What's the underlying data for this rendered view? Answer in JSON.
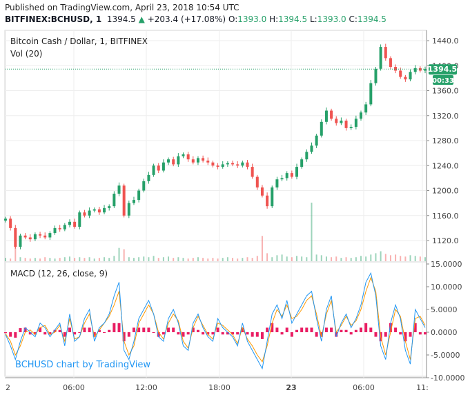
{
  "header": {
    "published": "Published on TradingView.com, April 23, 2018 10:54 UTC",
    "symbol": "BITFINEX:BCHUSD, 1",
    "last": "1394.5",
    "change": "+203.4 (+17.08%)",
    "o_label": "O:",
    "o": "1393.0",
    "h_label": "H:",
    "h": "1394.5",
    "l_label": "L:",
    "l": "1393.0",
    "c_label": "C:",
    "c": "1394.5"
  },
  "pane_labels": {
    "main_title": "Bitcoin Cash / Dollar, 1, BITFINEX",
    "volume": "Vol (20)",
    "macd": "MACD (12, 26, close, 9)",
    "watermark": "BCHUSD chart by TradingView"
  },
  "price_badge": "1394.5",
  "timer_badge": "00:33",
  "colors": {
    "up": "#26a069",
    "down": "#ef5350",
    "macd": "#2196f3",
    "signal": "#ff9800",
    "hist": "#e91e63",
    "badge": "#26a069"
  },
  "chart_data": [
    {
      "type": "candlestick",
      "title": "Bitcoin Cash / Dollar, 1, BITFINEX",
      "x_ticks": [
        "2",
        "06:00",
        "12:00",
        "18:00",
        "23",
        "06:00",
        "11:"
      ],
      "y_ticks": [
        "1120.0",
        "1160.0",
        "1200.0",
        "1240.0",
        "1280.0",
        "1320.0",
        "1360.0",
        "1400.0",
        "1440.0"
      ],
      "ylim": [
        1100,
        1455
      ],
      "last_price": 1394.5,
      "close_series": [
        1155,
        1140,
        1110,
        1128,
        1125,
        1122,
        1130,
        1128,
        1125,
        1132,
        1140,
        1138,
        1145,
        1150,
        1142,
        1165,
        1160,
        1168,
        1170,
        1165,
        1172,
        1175,
        1195,
        1208,
        1160,
        1180,
        1185,
        1200,
        1215,
        1225,
        1240,
        1232,
        1245,
        1250,
        1242,
        1255,
        1258,
        1250,
        1245,
        1252,
        1248,
        1245,
        1240,
        1238,
        1242,
        1244,
        1242,
        1240,
        1245,
        1238,
        1222,
        1205,
        1192,
        1175,
        1205,
        1218,
        1220,
        1228,
        1222,
        1238,
        1250,
        1262,
        1272,
        1288,
        1310,
        1328,
        1315,
        1308,
        1312,
        1300,
        1302,
        1315,
        1325,
        1338,
        1372,
        1395,
        1430,
        1412,
        1398,
        1392,
        1382,
        1378,
        1390,
        1396,
        1392,
        1394.5
      ]
    },
    {
      "type": "bar",
      "title": "Vol (20)",
      "values": [
        5,
        4,
        30,
        6,
        5,
        4,
        5,
        4,
        6,
        5,
        4,
        5,
        6,
        7,
        5,
        6,
        5,
        6,
        4,
        5,
        6,
        5,
        8,
        20,
        18,
        6,
        5,
        6,
        7,
        6,
        8,
        5,
        6,
        7,
        5,
        6,
        5,
        4,
        5,
        6,
        5,
        4,
        5,
        4,
        5,
        6,
        5,
        4,
        5,
        6,
        5,
        8,
        38,
        12,
        6,
        9,
        10,
        7,
        6,
        8,
        7,
        6,
        88,
        10,
        9,
        7,
        6,
        7,
        5,
        6,
        5,
        6,
        8,
        7,
        10,
        12,
        15,
        11,
        9,
        10,
        8,
        7,
        9,
        8,
        7,
        6
      ]
    },
    {
      "type": "line",
      "title": "MACD (12, 26, close, 9)",
      "y_ticks": [
        "-10.0000",
        "-5.0000",
        "0.0000",
        "5.0000",
        "10.0000",
        "15.0000"
      ],
      "ylim": [
        -10,
        15
      ],
      "series": [
        {
          "values": [
            -0.5,
            -3,
            -6,
            -2,
            1,
            0,
            -1,
            2,
            1,
            -1,
            0.5,
            2,
            -3,
            4,
            -2,
            -1,
            3,
            5,
            -2,
            1,
            2,
            4,
            8,
            11,
            -4,
            -6,
            -2,
            3,
            5,
            7,
            4,
            -1,
            -2,
            3,
            5,
            2,
            -3,
            -4,
            2,
            4,
            1,
            -1,
            -2,
            3,
            1,
            0,
            -1,
            -3,
            2,
            -2,
            -4,
            -6,
            -8,
            -2,
            4,
            6,
            3,
            7,
            2,
            4,
            6,
            8,
            9,
            3,
            -2,
            5,
            8,
            -1,
            2,
            4,
            1,
            3,
            6,
            11,
            13,
            8,
            -3,
            -6,
            2,
            6,
            3,
            -4,
            -7,
            5,
            3,
            1
          ]
        },
        {
          "values": [
            -0.3,
            -2,
            -5,
            -3,
            0,
            0.5,
            -0.5,
            1,
            1.5,
            -0.5,
            0,
            1.5,
            -2,
            3,
            -1.5,
            -1,
            2,
            4,
            -1,
            0.5,
            2,
            3.5,
            6,
            9,
            -2,
            -5,
            -3,
            2,
            4,
            6,
            4,
            0,
            -1.5,
            2,
            4,
            2.5,
            -2,
            -3.5,
            1,
            3.5,
            1.5,
            -0.5,
            -1.5,
            2,
            1.5,
            0.5,
            -0.5,
            -2.5,
            1,
            -1.5,
            -3,
            -5,
            -6.5,
            -3,
            2,
            5,
            3.5,
            6,
            3,
            3.5,
            5,
            7,
            8,
            4,
            -1,
            4,
            7,
            0,
            1.5,
            3.5,
            1.5,
            2.5,
            5,
            9,
            12,
            9,
            -1,
            -5,
            0,
            5,
            3.5,
            -2,
            -6,
            3,
            3.5,
            1.5
          ]
        },
        {
          "values": [
            -0.2,
            -1,
            -1.2,
            0.9,
            1,
            -0.5,
            -0.5,
            1,
            -0.5,
            -0.5,
            0.5,
            0.5,
            -1,
            1,
            -0.5,
            0,
            1,
            1,
            -1,
            0.5,
            0,
            0.5,
            2,
            2,
            -2,
            -1,
            1,
            1,
            1,
            1,
            0,
            -1,
            -0.5,
            1,
            1,
            -0.5,
            -1,
            -0.5,
            1,
            0.5,
            -0.5,
            -0.5,
            -0.5,
            1,
            -0.5,
            -0.5,
            -0.5,
            -0.5,
            1,
            -0.5,
            -1,
            -1,
            -1.5,
            1,
            2,
            1,
            -0.5,
            1,
            -1,
            0.5,
            1,
            1,
            1,
            -1,
            -1,
            1,
            1,
            -1,
            0.5,
            0.5,
            -0.5,
            0.5,
            1,
            2,
            1,
            -1,
            -2,
            -1,
            2,
            1,
            -0.5,
            -2,
            -1,
            2,
            -0.5,
            -0.5
          ]
        }
      ]
    }
  ]
}
